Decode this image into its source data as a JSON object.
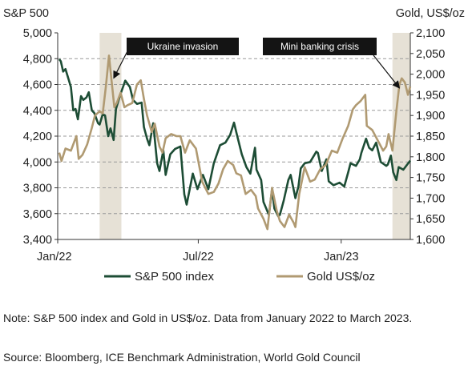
{
  "chart_data": {
    "type": "line",
    "y_left_title": "S&P 500",
    "y_right_title": "Gold, US$/oz",
    "x_tick_labels": [
      "Jan/22",
      "Jul/22",
      "Jan/23"
    ],
    "x_tick_dates": [
      "2022-01-01",
      "2022-07-01",
      "2023-01-01"
    ],
    "x_range": [
      "2022-01-01",
      "2023-03-31"
    ],
    "y_left": {
      "min": 3400,
      "max": 5000,
      "step": 200,
      "tick_labels": [
        "3,400",
        "3,600",
        "3,800",
        "4,000",
        "4,200",
        "4,400",
        "4,600",
        "4,800",
        "5,000"
      ]
    },
    "y_right": {
      "min": 1600,
      "max": 2100,
      "step": 50,
      "tick_labels": [
        "1,600",
        "1,650",
        "1,700",
        "1,750",
        "1,800",
        "1,850",
        "1,900",
        "1,950",
        "2,000",
        "2,050",
        "2,100"
      ]
    },
    "grid": "horizontal dashed",
    "shaded_periods": [
      {
        "start": "2022-02-24",
        "end": "2022-03-24"
      },
      {
        "start": "2023-03-08",
        "end": "2023-03-31"
      }
    ],
    "annotations": [
      {
        "text": "Ukraine invasion",
        "points_to": {
          "series": "Gold US$/oz",
          "date": "2022-03-08"
        }
      },
      {
        "text": "Mini banking crisis",
        "points_to": {
          "series": "Gold US$/oz",
          "date": "2023-03-20"
        }
      }
    ],
    "series": [
      {
        "name": "S&P 500 index",
        "axis": "left",
        "color": "#1d4d35",
        "points": [
          [
            "2022-01-03",
            4796
          ],
          [
            "2022-01-05",
            4780
          ],
          [
            "2022-01-08",
            4700
          ],
          [
            "2022-01-11",
            4720
          ],
          [
            "2022-01-14",
            4660
          ],
          [
            "2022-01-18",
            4580
          ],
          [
            "2022-01-21",
            4400
          ],
          [
            "2022-01-24",
            4410
          ],
          [
            "2022-01-27",
            4330
          ],
          [
            "2022-01-31",
            4510
          ],
          [
            "2022-02-03",
            4480
          ],
          [
            "2022-02-07",
            4500
          ],
          [
            "2022-02-10",
            4540
          ],
          [
            "2022-02-14",
            4400
          ],
          [
            "2022-02-17",
            4380
          ],
          [
            "2022-02-22",
            4300
          ],
          [
            "2022-02-24",
            4290
          ],
          [
            "2022-02-28",
            4370
          ],
          [
            "2022-03-03",
            4360
          ],
          [
            "2022-03-07",
            4200
          ],
          [
            "2022-03-10",
            4260
          ],
          [
            "2022-03-14",
            4170
          ],
          [
            "2022-03-17",
            4410
          ],
          [
            "2022-03-22",
            4510
          ],
          [
            "2022-03-29",
            4630
          ],
          [
            "2022-04-04",
            4580
          ],
          [
            "2022-04-08",
            4480
          ],
          [
            "2022-04-13",
            4450
          ],
          [
            "2022-04-19",
            4460
          ],
          [
            "2022-04-22",
            4270
          ],
          [
            "2022-04-26",
            4180
          ],
          [
            "2022-04-29",
            4130
          ],
          [
            "2022-05-04",
            4300
          ],
          [
            "2022-05-09",
            3990
          ],
          [
            "2022-05-12",
            3930
          ],
          [
            "2022-05-17",
            4090
          ],
          [
            "2022-05-20",
            3900
          ],
          [
            "2022-05-26",
            4060
          ],
          [
            "2022-06-01",
            4100
          ],
          [
            "2022-06-08",
            4120
          ],
          [
            "2022-06-13",
            3750
          ],
          [
            "2022-06-16",
            3670
          ],
          [
            "2022-06-24",
            3910
          ],
          [
            "2022-06-30",
            3790
          ],
          [
            "2022-07-07",
            3900
          ],
          [
            "2022-07-14",
            3790
          ],
          [
            "2022-07-21",
            3990
          ],
          [
            "2022-07-29",
            4130
          ],
          [
            "2022-08-05",
            4150
          ],
          [
            "2022-08-11",
            4210
          ],
          [
            "2022-08-16",
            4305
          ],
          [
            "2022-08-19",
            4230
          ],
          [
            "2022-08-26",
            4060
          ],
          [
            "2022-09-01",
            3960
          ],
          [
            "2022-09-06",
            3910
          ],
          [
            "2022-09-12",
            4110
          ],
          [
            "2022-09-14",
            3940
          ],
          [
            "2022-09-20",
            3860
          ],
          [
            "2022-09-23",
            3690
          ],
          [
            "2022-09-30",
            3590
          ],
          [
            "2022-10-04",
            3790
          ],
          [
            "2022-10-07",
            3640
          ],
          [
            "2022-10-12",
            3580
          ],
          [
            "2022-10-14",
            3590
          ],
          [
            "2022-10-19",
            3700
          ],
          [
            "2022-10-25",
            3860
          ],
          [
            "2022-10-28",
            3900
          ],
          [
            "2022-11-03",
            3720
          ],
          [
            "2022-11-07",
            3810
          ],
          [
            "2022-11-10",
            3950
          ],
          [
            "2022-11-15",
            3990
          ],
          [
            "2022-11-22",
            4000
          ],
          [
            "2022-11-30",
            4080
          ],
          [
            "2022-12-02",
            4070
          ],
          [
            "2022-12-07",
            3930
          ],
          [
            "2022-12-13",
            4020
          ],
          [
            "2022-12-16",
            3850
          ],
          [
            "2022-12-22",
            3820
          ],
          [
            "2022-12-30",
            3840
          ],
          [
            "2023-01-05",
            3810
          ],
          [
            "2023-01-10",
            3920
          ],
          [
            "2023-01-13",
            3990
          ],
          [
            "2023-01-20",
            3970
          ],
          [
            "2023-01-25",
            4020
          ],
          [
            "2023-01-27",
            4070
          ],
          [
            "2023-02-02",
            4180
          ],
          [
            "2023-02-06",
            4110
          ],
          [
            "2023-02-10",
            4090
          ],
          [
            "2023-02-15",
            4150
          ],
          [
            "2023-02-21",
            4000
          ],
          [
            "2023-02-28",
            3970
          ],
          [
            "2023-03-02",
            3980
          ],
          [
            "2023-03-06",
            4050
          ],
          [
            "2023-03-09",
            3920
          ],
          [
            "2023-03-13",
            3860
          ],
          [
            "2023-03-16",
            3960
          ],
          [
            "2023-03-22",
            3940
          ],
          [
            "2023-03-27",
            3980
          ],
          [
            "2023-03-31",
            4010
          ]
        ]
      },
      {
        "name": "Gold US$/oz",
        "axis": "right",
        "color": "#b09a72",
        "points": [
          [
            "2022-01-03",
            1810
          ],
          [
            "2022-01-06",
            1790
          ],
          [
            "2022-01-11",
            1820
          ],
          [
            "2022-01-18",
            1815
          ],
          [
            "2022-01-25",
            1850
          ],
          [
            "2022-01-28",
            1795
          ],
          [
            "2022-02-02",
            1805
          ],
          [
            "2022-02-08",
            1830
          ],
          [
            "2022-02-14",
            1870
          ],
          [
            "2022-02-18",
            1900
          ],
          [
            "2022-02-24",
            1910
          ],
          [
            "2022-02-28",
            1905
          ],
          [
            "2022-03-04",
            1970
          ],
          [
            "2022-03-08",
            2045
          ],
          [
            "2022-03-11",
            1990
          ],
          [
            "2022-03-15",
            1920
          ],
          [
            "2022-03-18",
            1930
          ],
          [
            "2022-03-23",
            1955
          ],
          [
            "2022-03-28",
            1920
          ],
          [
            "2022-04-01",
            1925
          ],
          [
            "2022-04-07",
            1930
          ],
          [
            "2022-04-13",
            1975
          ],
          [
            "2022-04-18",
            1985
          ],
          [
            "2022-04-22",
            1940
          ],
          [
            "2022-04-26",
            1900
          ],
          [
            "2022-05-02",
            1860
          ],
          [
            "2022-05-06",
            1880
          ],
          [
            "2022-05-12",
            1825
          ],
          [
            "2022-05-16",
            1810
          ],
          [
            "2022-05-20",
            1845
          ],
          [
            "2022-05-27",
            1855
          ],
          [
            "2022-06-03",
            1850
          ],
          [
            "2022-06-08",
            1850
          ],
          [
            "2022-06-14",
            1810
          ],
          [
            "2022-06-20",
            1840
          ],
          [
            "2022-06-28",
            1820
          ],
          [
            "2022-07-06",
            1740
          ],
          [
            "2022-07-14",
            1710
          ],
          [
            "2022-07-21",
            1715
          ],
          [
            "2022-07-27",
            1735
          ],
          [
            "2022-08-02",
            1770
          ],
          [
            "2022-08-08",
            1790
          ],
          [
            "2022-08-15",
            1780
          ],
          [
            "2022-08-19",
            1760
          ],
          [
            "2022-08-25",
            1755
          ],
          [
            "2022-08-31",
            1710
          ],
          [
            "2022-09-07",
            1720
          ],
          [
            "2022-09-13",
            1705
          ],
          [
            "2022-09-16",
            1675
          ],
          [
            "2022-09-23",
            1650
          ],
          [
            "2022-09-28",
            1625
          ],
          [
            "2022-10-04",
            1725
          ],
          [
            "2022-10-10",
            1670
          ],
          [
            "2022-10-14",
            1645
          ],
          [
            "2022-10-20",
            1630
          ],
          [
            "2022-10-26",
            1660
          ],
          [
            "2022-11-01",
            1640
          ],
          [
            "2022-11-03",
            1630
          ],
          [
            "2022-11-08",
            1710
          ],
          [
            "2022-11-15",
            1775
          ],
          [
            "2022-11-22",
            1740
          ],
          [
            "2022-11-28",
            1745
          ],
          [
            "2022-12-05",
            1770
          ],
          [
            "2022-12-12",
            1780
          ],
          [
            "2022-12-20",
            1815
          ],
          [
            "2022-12-27",
            1810
          ],
          [
            "2023-01-03",
            1845
          ],
          [
            "2023-01-10",
            1875
          ],
          [
            "2023-01-16",
            1915
          ],
          [
            "2023-01-20",
            1925
          ],
          [
            "2023-01-26",
            1935
          ],
          [
            "2023-02-01",
            1950
          ],
          [
            "2023-02-03",
            1875
          ],
          [
            "2023-02-10",
            1865
          ],
          [
            "2023-02-17",
            1840
          ],
          [
            "2023-02-24",
            1815
          ],
          [
            "2023-02-28",
            1825
          ],
          [
            "2023-03-03",
            1855
          ],
          [
            "2023-03-08",
            1815
          ],
          [
            "2023-03-13",
            1910
          ],
          [
            "2023-03-17",
            1975
          ],
          [
            "2023-03-20",
            1990
          ],
          [
            "2023-03-24",
            1980
          ],
          [
            "2023-03-28",
            1950
          ],
          [
            "2023-03-31",
            1970
          ]
        ]
      }
    ]
  },
  "note": "Note: S&P 500 index and Gold in US$/oz. Data from January 2022 to March 2023.",
  "source": "Source: Bloomberg, ICE Benchmark Administration, World Gold Council"
}
